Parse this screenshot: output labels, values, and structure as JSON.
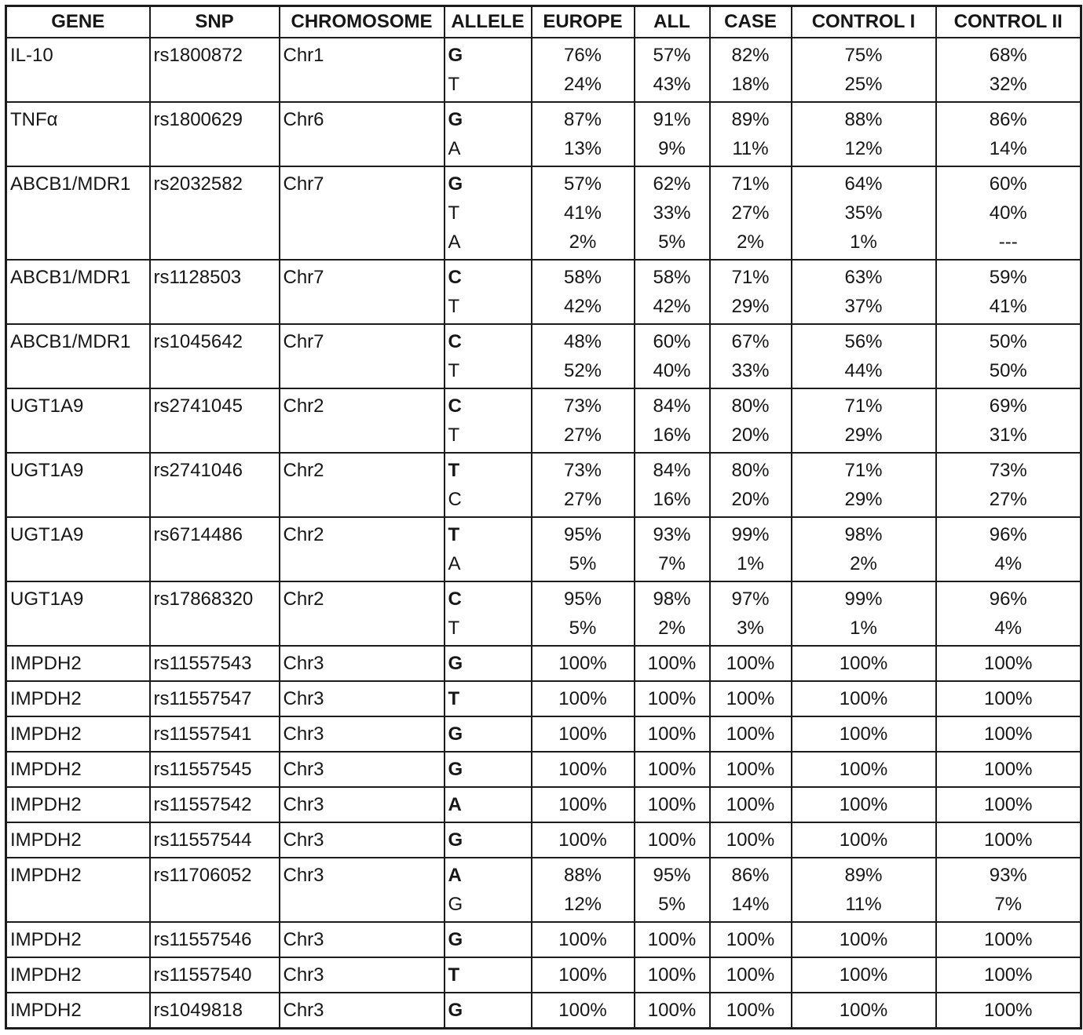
{
  "table": {
    "columns": [
      {
        "key": "gene",
        "label": "GENE"
      },
      {
        "key": "snp",
        "label": "SNP"
      },
      {
        "key": "chromosome",
        "label": "CHROMOSOME"
      },
      {
        "key": "alleles",
        "label": "ALLELE"
      },
      {
        "key": "europe",
        "label": "EUROPE"
      },
      {
        "key": "all",
        "label": "ALL"
      },
      {
        "key": "case",
        "label": "CASE"
      },
      {
        "key": "control1",
        "label": "CONTROL I"
      },
      {
        "key": "control2",
        "label": "CONTROL II"
      }
    ],
    "rows": [
      {
        "gene": "IL-10",
        "snp": "rs1800872",
        "chromosome": "Chr1",
        "alleles": [
          "G",
          "T"
        ],
        "europe": [
          "76%",
          "24%"
        ],
        "all": [
          "57%",
          "43%"
        ],
        "case": [
          "82%",
          "18%"
        ],
        "control1": [
          "75%",
          "25%"
        ],
        "control2": [
          "68%",
          "32%"
        ]
      },
      {
        "gene": "TNFα",
        "snp": "rs1800629",
        "chromosome": "Chr6",
        "alleles": [
          "G",
          "A"
        ],
        "europe": [
          "87%",
          "13%"
        ],
        "all": [
          "91%",
          "9%"
        ],
        "case": [
          "89%",
          "11%"
        ],
        "control1": [
          "88%",
          "12%"
        ],
        "control2": [
          "86%",
          "14%"
        ]
      },
      {
        "gene": "ABCB1/MDR1",
        "snp": "rs2032582",
        "chromosome": "Chr7",
        "alleles": [
          "G",
          "T",
          "A"
        ],
        "europe": [
          "57%",
          "41%",
          "2%"
        ],
        "all": [
          "62%",
          "33%",
          "5%"
        ],
        "case": [
          "71%",
          "27%",
          "2%"
        ],
        "control1": [
          "64%",
          "35%",
          "1%"
        ],
        "control2": [
          "60%",
          "40%",
          "---"
        ]
      },
      {
        "gene": "ABCB1/MDR1",
        "snp": "rs1128503",
        "chromosome": "Chr7",
        "alleles": [
          "C",
          "T"
        ],
        "europe": [
          "58%",
          "42%"
        ],
        "all": [
          "58%",
          "42%"
        ],
        "case": [
          "71%",
          "29%"
        ],
        "control1": [
          "63%",
          "37%"
        ],
        "control2": [
          "59%",
          "41%"
        ]
      },
      {
        "gene": "ABCB1/MDR1",
        "snp": "rs1045642",
        "chromosome": "Chr7",
        "alleles": [
          "C",
          "T"
        ],
        "europe": [
          "48%",
          "52%"
        ],
        "all": [
          "60%",
          "40%"
        ],
        "case": [
          "67%",
          "33%"
        ],
        "control1": [
          "56%",
          "44%"
        ],
        "control2": [
          "50%",
          "50%"
        ]
      },
      {
        "gene": "UGT1A9",
        "snp": "rs2741045",
        "chromosome": "Chr2",
        "alleles": [
          "C",
          "T"
        ],
        "europe": [
          "73%",
          "27%"
        ],
        "all": [
          "84%",
          "16%"
        ],
        "case": [
          "80%",
          "20%"
        ],
        "control1": [
          "71%",
          "29%"
        ],
        "control2": [
          "69%",
          "31%"
        ]
      },
      {
        "gene": "UGT1A9",
        "snp": "rs2741046",
        "chromosome": "Chr2",
        "alleles": [
          "T",
          "C"
        ],
        "europe": [
          "73%",
          "27%"
        ],
        "all": [
          "84%",
          "16%"
        ],
        "case": [
          "80%",
          "20%"
        ],
        "control1": [
          "71%",
          "29%"
        ],
        "control2": [
          "73%",
          "27%"
        ]
      },
      {
        "gene": "UGT1A9",
        "snp": "rs6714486",
        "chromosome": "Chr2",
        "alleles": [
          "T",
          "A"
        ],
        "europe": [
          "95%",
          "5%"
        ],
        "all": [
          "93%",
          "7%"
        ],
        "case": [
          "99%",
          "1%"
        ],
        "control1": [
          "98%",
          "2%"
        ],
        "control2": [
          "96%",
          "4%"
        ]
      },
      {
        "gene": "UGT1A9",
        "snp": "rs17868320",
        "chromosome": "Chr2",
        "alleles": [
          "C",
          "T"
        ],
        "europe": [
          "95%",
          "5%"
        ],
        "all": [
          "98%",
          "2%"
        ],
        "case": [
          "97%",
          "3%"
        ],
        "control1": [
          "99%",
          "1%"
        ],
        "control2": [
          "96%",
          "4%"
        ]
      },
      {
        "gene": "IMPDH2",
        "snp": "rs11557543",
        "chromosome": "Chr3",
        "alleles": [
          "G"
        ],
        "europe": [
          "100%"
        ],
        "all": [
          "100%"
        ],
        "case": [
          "100%"
        ],
        "control1": [
          "100%"
        ],
        "control2": [
          "100%"
        ]
      },
      {
        "gene": "IMPDH2",
        "snp": "rs11557547",
        "chromosome": "Chr3",
        "alleles": [
          "T"
        ],
        "europe": [
          "100%"
        ],
        "all": [
          "100%"
        ],
        "case": [
          "100%"
        ],
        "control1": [
          "100%"
        ],
        "control2": [
          "100%"
        ]
      },
      {
        "gene": "IMPDH2",
        "snp": "rs11557541",
        "chromosome": "Chr3",
        "alleles": [
          "G"
        ],
        "europe": [
          "100%"
        ],
        "all": [
          "100%"
        ],
        "case": [
          "100%"
        ],
        "control1": [
          "100%"
        ],
        "control2": [
          "100%"
        ]
      },
      {
        "gene": "IMPDH2",
        "snp": "rs11557545",
        "chromosome": "Chr3",
        "alleles": [
          "G"
        ],
        "europe": [
          "100%"
        ],
        "all": [
          "100%"
        ],
        "case": [
          "100%"
        ],
        "control1": [
          "100%"
        ],
        "control2": [
          "100%"
        ]
      },
      {
        "gene": "IMPDH2",
        "snp": "rs11557542",
        "chromosome": "Chr3",
        "alleles": [
          "A"
        ],
        "europe": [
          "100%"
        ],
        "all": [
          "100%"
        ],
        "case": [
          "100%"
        ],
        "control1": [
          "100%"
        ],
        "control2": [
          "100%"
        ]
      },
      {
        "gene": "IMPDH2",
        "snp": "rs11557544",
        "chromosome": "Chr3",
        "alleles": [
          "G"
        ],
        "europe": [
          "100%"
        ],
        "all": [
          "100%"
        ],
        "case": [
          "100%"
        ],
        "control1": [
          "100%"
        ],
        "control2": [
          "100%"
        ]
      },
      {
        "gene": "IMPDH2",
        "snp": "rs11706052",
        "chromosome": "Chr3",
        "alleles": [
          "A",
          "G"
        ],
        "europe": [
          "88%",
          "12%"
        ],
        "all": [
          "95%",
          "5%"
        ],
        "case": [
          "86%",
          "14%"
        ],
        "control1": [
          "89%",
          "11%"
        ],
        "control2": [
          "93%",
          "7%"
        ]
      },
      {
        "gene": "IMPDH2",
        "snp": "rs11557546",
        "chromosome": "Chr3",
        "alleles": [
          "G"
        ],
        "europe": [
          "100%"
        ],
        "all": [
          "100%"
        ],
        "case": [
          "100%"
        ],
        "control1": [
          "100%"
        ],
        "control2": [
          "100%"
        ]
      },
      {
        "gene": "IMPDH2",
        "snp": "rs11557540",
        "chromosome": "Chr3",
        "alleles": [
          "T"
        ],
        "europe": [
          "100%"
        ],
        "all": [
          "100%"
        ],
        "case": [
          "100%"
        ],
        "control1": [
          "100%"
        ],
        "control2": [
          "100%"
        ]
      },
      {
        "gene": "IMPDH2",
        "snp": "rs1049818",
        "chromosome": "Chr3",
        "alleles": [
          "G"
        ],
        "europe": [
          "100%"
        ],
        "all": [
          "100%"
        ],
        "case": [
          "100%"
        ],
        "control1": [
          "100%"
        ],
        "control2": [
          "100%"
        ]
      }
    ]
  }
}
